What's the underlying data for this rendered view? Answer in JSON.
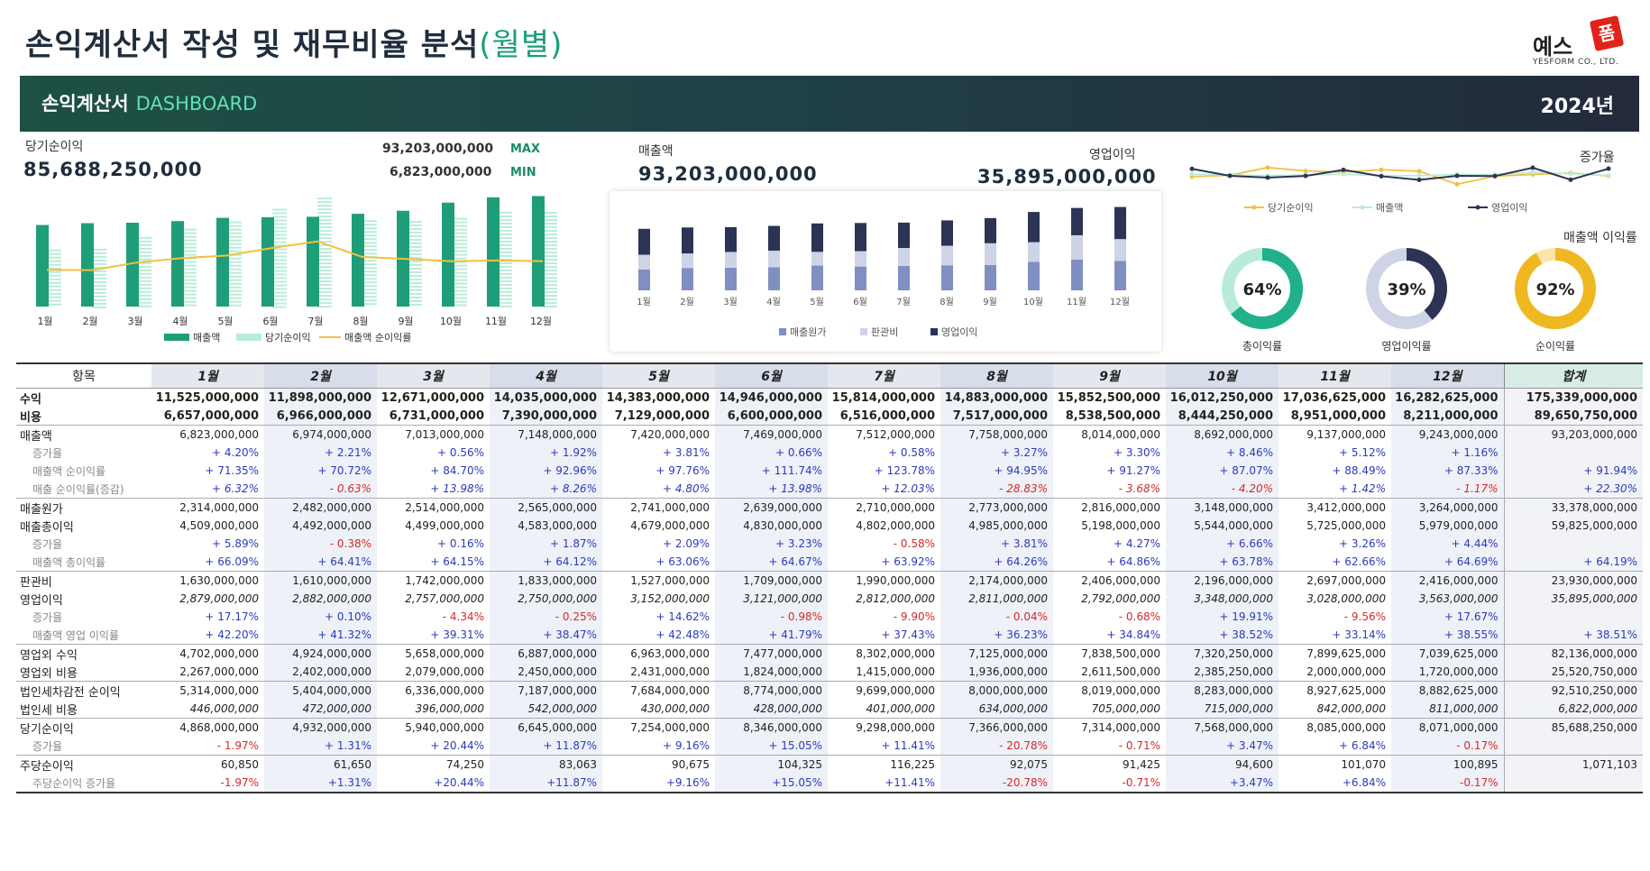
{
  "page": {
    "title": "손익계산서 작성 및 재무비율 분석",
    "title_sub": "(월별)",
    "logo_text": "예스",
    "logo_mark": "폼",
    "logo_sub": "YESFORM CO., LTD."
  },
  "banner": {
    "title": "손익계산서",
    "subtitle": "DASHBOARD",
    "year": "2024년"
  },
  "kpi": {
    "net_income_label": "당기순이익",
    "net_income_value": "85,688,250,000",
    "max_value": "93,203,000,000",
    "max_label": "MAX",
    "min_value": "6,823,000,000",
    "min_label": "MIN",
    "sales_label": "매출액",
    "sales_value": "93,203,000,000",
    "op_label": "영업이익",
    "op_value": "35,895,000,000",
    "growth_label": "증가율",
    "margin_label": "매출액 이익률"
  },
  "colors": {
    "green": "#1e9e78",
    "green_light": "#b9ecd8",
    "yellow": "#f0c040",
    "navy": "#2b3454",
    "bar_cost": "#7f8fc2",
    "bar_sga": "#cfd3e6",
    "bar_op": "#2b3454",
    "gold": "#f0b820",
    "donut_teal": "#20b08a",
    "donut_teal_bg": "#b9ecd8",
    "donut_navy_bg": "#cfd3e6",
    "donut_gold_bg": "#fbe5a8"
  },
  "chart_data": [
    {
      "type": "bar",
      "categories": [
        "1월",
        "2월",
        "3월",
        "4월",
        "5월",
        "6월",
        "7월",
        "8월",
        "9월",
        "10월",
        "11월",
        "12월"
      ],
      "series": [
        {
          "name": "매출액",
          "values": [
            6823,
            6974,
            7013,
            7148,
            7420,
            7469,
            7512,
            7758,
            8014,
            8692,
            9137,
            9243
          ]
        },
        {
          "name": "당기순이익",
          "values": [
            4868,
            4932,
            5940,
            6645,
            7254,
            8346,
            9298,
            7366,
            7314,
            7568,
            8085,
            8071
          ]
        },
        {
          "name": "매출액 순이익률",
          "values": [
            71.35,
            70.72,
            84.7,
            92.96,
            97.76,
            111.74,
            123.78,
            94.95,
            91.27,
            87.07,
            88.49,
            87.33
          ]
        }
      ],
      "legend": "bottom"
    },
    {
      "type": "bar",
      "categories": [
        "1월",
        "2월",
        "3월",
        "4월",
        "5월",
        "6월",
        "7월",
        "8월",
        "9월",
        "10월",
        "11월",
        "12월"
      ],
      "series": [
        {
          "name": "매출원가",
          "values": [
            2314,
            2482,
            2514,
            2565,
            2741,
            2639,
            2710,
            2773,
            2816,
            3148,
            3412,
            3264
          ]
        },
        {
          "name": "판관비",
          "values": [
            1630,
            1610,
            1742,
            1833,
            1527,
            1709,
            1990,
            2174,
            2406,
            2196,
            2697,
            2416
          ]
        },
        {
          "name": "영업이익",
          "values": [
            2879,
            2882,
            2757,
            2750,
            3152,
            3121,
            2812,
            2811,
            2792,
            3348,
            3028,
            3563
          ]
        }
      ],
      "legend": "bottom"
    },
    {
      "type": "line",
      "x": [
        "1월",
        "2월",
        "3월",
        "4월",
        "5월",
        "6월",
        "7월",
        "8월",
        "9월",
        "10월",
        "11월",
        "12월"
      ],
      "series": [
        {
          "name": "당기순이익",
          "values": [
            -1.97,
            1.31,
            20.44,
            11.87,
            9.16,
            15.05,
            11.41,
            -20.78,
            -0.71,
            3.47,
            6.84,
            -0.17
          ]
        },
        {
          "name": "매출액",
          "values": [
            4.2,
            2.21,
            0.56,
            1.92,
            3.81,
            0.66,
            0.58,
            3.27,
            3.3,
            8.46,
            5.12,
            1.16
          ]
        },
        {
          "name": "영업이익",
          "values": [
            17.17,
            0.1,
            -4.34,
            -0.25,
            14.62,
            -0.98,
            -9.9,
            -0.04,
            -0.68,
            19.91,
            -9.56,
            17.67
          ]
        }
      ],
      "legend": "bottom"
    },
    {
      "type": "pie",
      "slices": [
        {
          "name": "총이익률",
          "value": 64,
          "label": "64%"
        },
        {
          "name": "영업이익률",
          "value": 39,
          "label": "39%"
        },
        {
          "name": "순이익률",
          "value": 92,
          "label": "92%"
        }
      ]
    }
  ],
  "donuts": [
    {
      "label": "64%",
      "caption": "총이익률"
    },
    {
      "label": "39%",
      "caption": "영업이익률"
    },
    {
      "label": "92%",
      "caption": "순이익률"
    }
  ],
  "table": {
    "header_label": "항목",
    "total_label": "합계",
    "months": [
      "1월",
      "2월",
      "3월",
      "4월",
      "5월",
      "6월",
      "7월",
      "8월",
      "9월",
      "10월",
      "11월",
      "12월"
    ],
    "rows": [
      {
        "label": "수익",
        "type": "bold",
        "cells": [
          "11,525,000,000",
          "11,898,000,000",
          "12,671,000,000",
          "14,035,000,000",
          "14,383,000,000",
          "14,946,000,000",
          "15,814,000,000",
          "14,883,000,000",
          "15,852,500,000",
          "16,012,250,000",
          "17,036,625,000",
          "16,282,625,000",
          "175,339,000,000"
        ]
      },
      {
        "label": "비용",
        "type": "bold",
        "cells": [
          "6,657,000,000",
          "6,966,000,000",
          "6,731,000,000",
          "7,390,000,000",
          "7,129,000,000",
          "6,600,000,000",
          "6,516,000,000",
          "7,517,000,000",
          "8,538,500,000",
          "8,444,250,000",
          "8,951,000,000",
          "8,211,000,000",
          "89,650,750,000"
        ]
      },
      {
        "label": "매출액",
        "type": "main",
        "sep": true,
        "cells": [
          "6,823,000,000",
          "6,974,000,000",
          "7,013,000,000",
          "7,148,000,000",
          "7,420,000,000",
          "7,469,000,000",
          "7,512,000,000",
          "7,758,000,000",
          "8,014,000,000",
          "8,692,000,000",
          "9,137,000,000",
          "9,243,000,000",
          "93,203,000,000"
        ]
      },
      {
        "label": "증가율",
        "type": "sub",
        "cells": [
          "+ 4.20%",
          "+ 2.21%",
          "+ 0.56%",
          "+ 1.92%",
          "+ 3.81%",
          "+ 0.66%",
          "+ 0.58%",
          "+ 3.27%",
          "+ 3.30%",
          "+ 8.46%",
          "+ 5.12%",
          "+ 1.16%",
          ""
        ]
      },
      {
        "label": "매출액 순이익률",
        "type": "sub",
        "cells": [
          "+ 71.35%",
          "+ 70.72%",
          "+ 84.70%",
          "+ 92.96%",
          "+ 97.76%",
          "+ 111.74%",
          "+ 123.78%",
          "+ 94.95%",
          "+ 91.27%",
          "+ 87.07%",
          "+ 88.49%",
          "+ 87.33%",
          "+ 91.94%"
        ]
      },
      {
        "label": "매출 순이익률(증감)",
        "type": "sub",
        "ital": true,
        "cells": [
          "+ 6.32%",
          "- 0.63%",
          "+ 13.98%",
          "+ 8.26%",
          "+ 4.80%",
          "+ 13.98%",
          "+ 12.03%",
          "- 28.83%",
          "- 3.68%",
          "- 4.20%",
          "+ 1.42%",
          "- 1.17%",
          "+ 22.30%"
        ]
      },
      {
        "label": "매출원가",
        "type": "main",
        "sep": true,
        "cells": [
          "2,314,000,000",
          "2,482,000,000",
          "2,514,000,000",
          "2,565,000,000",
          "2,741,000,000",
          "2,639,000,000",
          "2,710,000,000",
          "2,773,000,000",
          "2,816,000,000",
          "3,148,000,000",
          "3,412,000,000",
          "3,264,000,000",
          "33,378,000,000"
        ]
      },
      {
        "label": "매출총이익",
        "type": "main",
        "cells": [
          "4,509,000,000",
          "4,492,000,000",
          "4,499,000,000",
          "4,583,000,000",
          "4,679,000,000",
          "4,830,000,000",
          "4,802,000,000",
          "4,985,000,000",
          "5,198,000,000",
          "5,544,000,000",
          "5,725,000,000",
          "5,979,000,000",
          "59,825,000,000"
        ]
      },
      {
        "label": "증가율",
        "type": "sub",
        "cells": [
          "+ 5.89%",
          "- 0.38%",
          "+ 0.16%",
          "+ 1.87%",
          "+ 2.09%",
          "+ 3.23%",
          "- 0.58%",
          "+ 3.81%",
          "+ 4.27%",
          "+ 6.66%",
          "+ 3.26%",
          "+ 4.44%",
          ""
        ]
      },
      {
        "label": "매출액 총이익률",
        "type": "sub",
        "cells": [
          "+ 66.09%",
          "+ 64.41%",
          "+ 64.15%",
          "+ 64.12%",
          "+ 63.06%",
          "+ 64.67%",
          "+ 63.92%",
          "+ 64.26%",
          "+ 64.86%",
          "+ 63.78%",
          "+ 62.66%",
          "+ 64.69%",
          "+ 64.19%"
        ]
      },
      {
        "label": "판관비",
        "type": "main",
        "sep": true,
        "cells": [
          "1,630,000,000",
          "1,610,000,000",
          "1,742,000,000",
          "1,833,000,000",
          "1,527,000,000",
          "1,709,000,000",
          "1,990,000,000",
          "2,174,000,000",
          "2,406,000,000",
          "2,196,000,000",
          "2,697,000,000",
          "2,416,000,000",
          "23,930,000,000"
        ]
      },
      {
        "label": "영업이익",
        "type": "main",
        "ital": true,
        "cells": [
          "2,879,000,000",
          "2,882,000,000",
          "2,757,000,000",
          "2,750,000,000",
          "3,152,000,000",
          "3,121,000,000",
          "2,812,000,000",
          "2,811,000,000",
          "2,792,000,000",
          "3,348,000,000",
          "3,028,000,000",
          "3,563,000,000",
          "35,895,000,000"
        ]
      },
      {
        "label": "증가율",
        "type": "sub",
        "cells": [
          "+ 17.17%",
          "+ 0.10%",
          "- 4.34%",
          "- 0.25%",
          "+ 14.62%",
          "- 0.98%",
          "- 9.90%",
          "- 0.04%",
          "- 0.68%",
          "+ 19.91%",
          "- 9.56%",
          "+ 17.67%",
          ""
        ]
      },
      {
        "label": "매출액 영업 이익률",
        "type": "sub",
        "cells": [
          "+ 42.20%",
          "+ 41.32%",
          "+ 39.31%",
          "+ 38.47%",
          "+ 42.48%",
          "+ 41.79%",
          "+ 37.43%",
          "+ 36.23%",
          "+ 34.84%",
          "+ 38.52%",
          "+ 33.14%",
          "+ 38.55%",
          "+ 38.51%"
        ]
      },
      {
        "label": "영업외 수익",
        "type": "main",
        "sep": true,
        "cells": [
          "4,702,000,000",
          "4,924,000,000",
          "5,658,000,000",
          "6,887,000,000",
          "6,963,000,000",
          "7,477,000,000",
          "8,302,000,000",
          "7,125,000,000",
          "7,838,500,000",
          "7,320,250,000",
          "7,899,625,000",
          "7,039,625,000",
          "82,136,000,000"
        ]
      },
      {
        "label": "영업외 비용",
        "type": "main",
        "cells": [
          "2,267,000,000",
          "2,402,000,000",
          "2,079,000,000",
          "2,450,000,000",
          "2,431,000,000",
          "1,824,000,000",
          "1,415,000,000",
          "1,936,000,000",
          "2,611,500,000",
          "2,385,250,000",
          "2,000,000,000",
          "1,720,000,000",
          "25,520,750,000"
        ]
      },
      {
        "label": "법인세차감전 순이익",
        "type": "main",
        "sep": true,
        "cells": [
          "5,314,000,000",
          "5,404,000,000",
          "6,336,000,000",
          "7,187,000,000",
          "7,684,000,000",
          "8,774,000,000",
          "9,699,000,000",
          "8,000,000,000",
          "8,019,000,000",
          "8,283,000,000",
          "8,927,625,000",
          "8,882,625,000",
          "92,510,250,000"
        ]
      },
      {
        "label": "법인세 비용",
        "type": "main",
        "ital": true,
        "cells": [
          "446,000,000",
          "472,000,000",
          "396,000,000",
          "542,000,000",
          "430,000,000",
          "428,000,000",
          "401,000,000",
          "634,000,000",
          "705,000,000",
          "715,000,000",
          "842,000,000",
          "811,000,000",
          "6,822,000,000"
        ]
      },
      {
        "label": "당기순이익",
        "type": "main",
        "sep": true,
        "cells": [
          "4,868,000,000",
          "4,932,000,000",
          "5,940,000,000",
          "6,645,000,000",
          "7,254,000,000",
          "8,346,000,000",
          "9,298,000,000",
          "7,366,000,000",
          "7,314,000,000",
          "7,568,000,000",
          "8,085,000,000",
          "8,071,000,000",
          "85,688,250,000"
        ]
      },
      {
        "label": "증가율",
        "type": "sub",
        "cells": [
          "- 1.97%",
          "+ 1.31%",
          "+ 20.44%",
          "+ 11.87%",
          "+ 9.16%",
          "+ 15.05%",
          "+ 11.41%",
          "- 20.78%",
          "- 0.71%",
          "+ 3.47%",
          "+ 6.84%",
          "- 0.17%",
          ""
        ]
      },
      {
        "label": "주당순이익",
        "type": "main",
        "sep": true,
        "cells": [
          "60,850",
          "61,650",
          "74,250",
          "83,063",
          "90,675",
          "104,325",
          "116,225",
          "92,075",
          "91,425",
          "94,600",
          "101,070",
          "100,895",
          "1,071,103"
        ]
      },
      {
        "label": "주당순이익 증가율",
        "type": "sub",
        "last": true,
        "cells": [
          "-1.97%",
          "+1.31%",
          "+20.44%",
          "+11.87%",
          "+9.16%",
          "+15.05%",
          "+11.41%",
          "-20.78%",
          "-0.71%",
          "+3.47%",
          "+6.84%",
          "-0.17%",
          ""
        ]
      }
    ]
  }
}
